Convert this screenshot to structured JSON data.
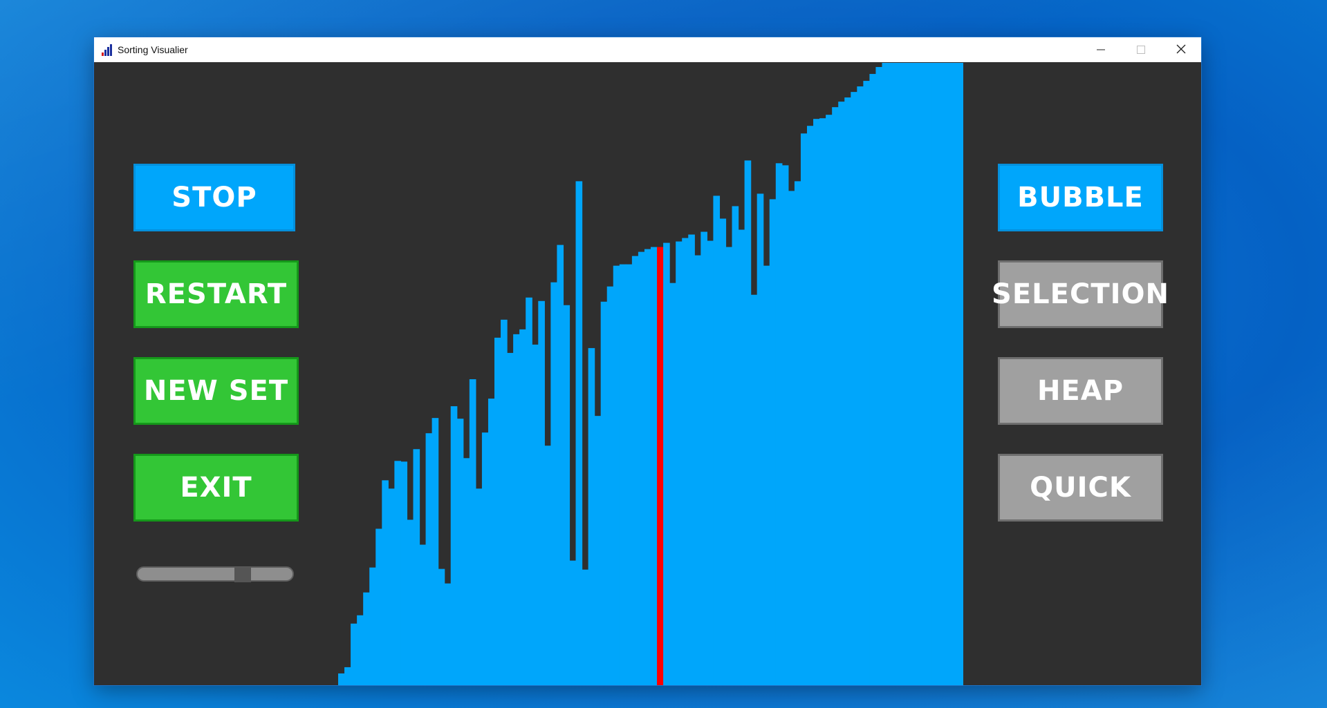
{
  "window": {
    "title": "Sorting Visualier",
    "controls": {
      "minimize": "minimize-icon",
      "maximize": "maximize-icon",
      "close": "close-icon"
    }
  },
  "left_panel": {
    "stop_label": "STOP",
    "restart_label": "RESTART",
    "new_set_label": "NEW SET",
    "exit_label": "EXIT",
    "speed_slider_value": 0.7
  },
  "right_panel": {
    "algorithms": [
      {
        "label": "BUBBLE",
        "selected": true
      },
      {
        "label": "SELECTION",
        "selected": false
      },
      {
        "label": "HEAP",
        "selected": false
      },
      {
        "label": "QUICK",
        "selected": false
      }
    ]
  },
  "colors": {
    "background": "#2f2f2f",
    "bar": "#00a6fb",
    "highlight_bar": "#ff0000",
    "selected_button": "#00a6fb",
    "action_button": "#33c636",
    "unselected_button": "#a0a0a0"
  },
  "chart_data": {
    "type": "bar",
    "ylim": [
      0,
      900
    ],
    "highlight_index": 51,
    "values": [
      17,
      26,
      89,
      101,
      134,
      170,
      226,
      296,
      284,
      324,
      323,
      239,
      341,
      203,
      364,
      386,
      168,
      147,
      403,
      385,
      328,
      442,
      284,
      365,
      414,
      502,
      528,
      480,
      507,
      514,
      560,
      492,
      555,
      346,
      582,
      636,
      549,
      180,
      728,
      167,
      487,
      389,
      554,
      576,
      606,
      608,
      608,
      620,
      626,
      630,
      633,
      633,
      639,
      581,
      641,
      646,
      651,
      621,
      655,
      642,
      707,
      674,
      633,
      692,
      658,
      758,
      564,
      710,
      606,
      702,
      754,
      751,
      714,
      728,
      797,
      808,
      818,
      819,
      824,
      835,
      843,
      849,
      857,
      865,
      873,
      883,
      893,
      899,
      899,
      899,
      899,
      899,
      899,
      899,
      899,
      899,
      899,
      899,
      899,
      899
    ]
  }
}
